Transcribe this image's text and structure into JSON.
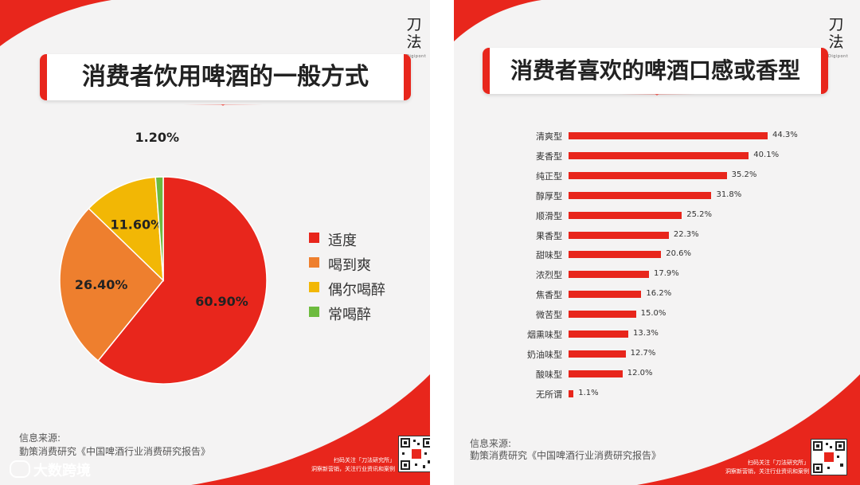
{
  "left_panel": {
    "title": "消费者饮用啤酒的一般方式",
    "logo": "刀\n法",
    "logo_sub": "Digipont",
    "source_label": "信息来源:",
    "source_text": "勤策消费研究《中国啤酒行业消费研究报告》",
    "qr_caption_1": "扫码关注「刀法研究所」",
    "qr_caption_2": "洞察新营销，关注行业资讯和案例"
  },
  "right_panel": {
    "title": "消费者喜欢的啤酒口感或香型",
    "logo": "刀\n法",
    "logo_sub": "Digipont",
    "source_label": "信息来源:",
    "source_text": "勤策消费研究《中国啤酒行业消费研究报告》",
    "qr_caption_1": "扫码关注「刀法研究所」",
    "qr_caption_2": "洞察新营销，关注行业资讯和案例"
  },
  "watermark": "大数跨境",
  "colors": {
    "accent": "#e8261c",
    "orange": "#ee7f2e",
    "yellow": "#f2b705",
    "green": "#6dbb3e"
  },
  "chart_data": [
    {
      "type": "pie",
      "title": "消费者饮用啤酒的一般方式",
      "legend_position": "right",
      "slices": [
        {
          "label": "适度",
          "value": 60.9,
          "value_label": "60.90%",
          "color": "#e8261c"
        },
        {
          "label": "喝到爽",
          "value": 26.4,
          "value_label": "26.40%",
          "color": "#ee7f2e"
        },
        {
          "label": "偶尔喝醉",
          "value": 11.6,
          "value_label": "11.60%",
          "color": "#f2b705"
        },
        {
          "label": "常喝醉",
          "value": 1.2,
          "value_label": "1.20%",
          "color": "#6dbb3e"
        }
      ]
    },
    {
      "type": "bar",
      "orientation": "horizontal",
      "title": "消费者喜欢的啤酒口感或香型",
      "categories": [
        "清爽型",
        "麦香型",
        "纯正型",
        "醇厚型",
        "顺滑型",
        "果香型",
        "甜味型",
        "浓烈型",
        "焦香型",
        "微苦型",
        "烟熏味型",
        "奶油味型",
        "酸味型",
        "无所谓"
      ],
      "values": [
        44.3,
        40.1,
        35.2,
        31.8,
        25.2,
        22.3,
        20.6,
        17.9,
        16.2,
        15.0,
        13.3,
        12.7,
        12.0,
        1.1
      ],
      "value_labels": [
        "44.3%",
        "40.1%",
        "35.2%",
        "31.8%",
        "25.2%",
        "22.3%",
        "20.6%",
        "17.9%",
        "16.2%",
        "15.0%",
        "13.3%",
        "12.7%",
        "12.0%",
        "1.1%"
      ],
      "color": "#e8261c",
      "grid": false
    }
  ]
}
